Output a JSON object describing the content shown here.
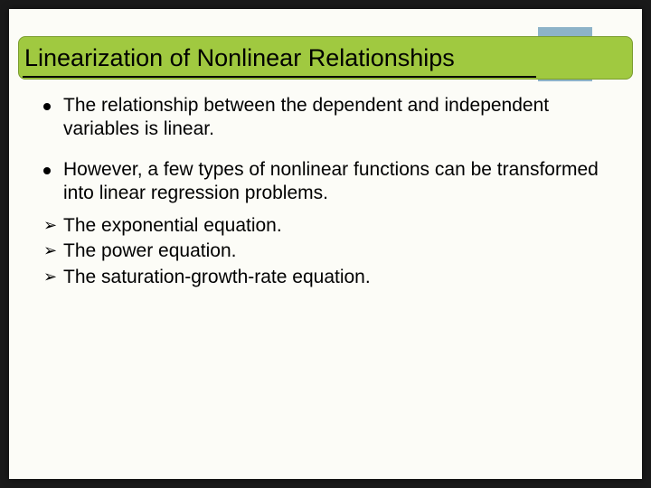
{
  "slide": {
    "background_color": "#fcfcf7",
    "outer_background": "#1a1a1a",
    "decor_color": "#8db3c8",
    "title_bar_color": "#a0c940",
    "title_border_color": "#7a9c2e",
    "title": "Linearization of Nonlinear Relationships",
    "title_fontsize": 27,
    "body_fontsize": 21,
    "text_color": "#000000",
    "bullets": [
      "The relationship between the dependent and independent variables is linear.",
      "However, a few types of nonlinear functions can be transformed into linear regression problems."
    ],
    "sub_items": [
      "The exponential equation.",
      "The power equation.",
      "The saturation-growth-rate equation."
    ],
    "arrow_glyph": "➢"
  }
}
